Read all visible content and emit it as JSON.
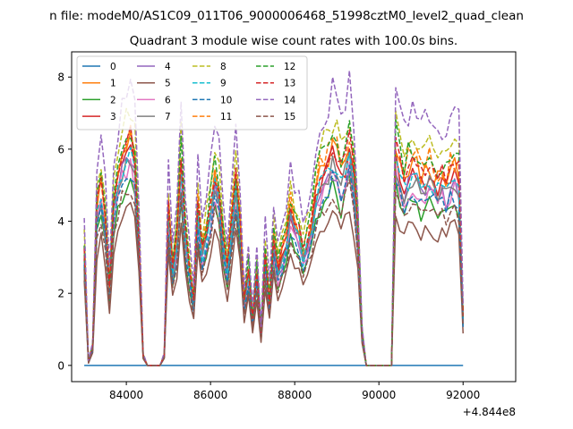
{
  "suptitle": "n file: modeM0/AS1C09_011T06_9000006468_51998cztM0_level2_quad_clean",
  "chart_data": {
    "type": "line",
    "title": "Quadrant 3 module wise count rates with 100.0s bins.",
    "xlabel": "",
    "ylabel": "",
    "x_offset_label": "+4.844e8",
    "xlim": [
      82700,
      93250
    ],
    "ylim": [
      -0.45,
      8.7
    ],
    "xticks": [
      84000,
      86000,
      88000,
      90000,
      92000
    ],
    "xtick_labels": [
      "84000",
      "86000",
      "88000",
      "90000",
      "92000"
    ],
    "yticks": [
      0,
      2,
      4,
      6,
      8
    ],
    "ytick_labels": [
      "0",
      "2",
      "4",
      "6",
      "8"
    ],
    "grid": false,
    "legend_position": "top-left",
    "legend_columns": 4,
    "x_start": 83000,
    "x_step": 100,
    "base_profile": [
      3.6,
      0.1,
      0.6,
      5.0,
      5.7,
      4.6,
      2.4,
      5.2,
      5.9,
      6.6,
      6.9,
      7.0,
      6.5,
      4.0,
      0.3,
      0.0,
      0.0,
      0.0,
      0.0,
      0.3,
      5.0,
      3.0,
      4.0,
      6.6,
      4.2,
      3.0,
      2.0,
      5.0,
      3.6,
      4.2,
      5.0,
      6.0,
      5.5,
      4.0,
      3.0,
      4.5,
      5.8,
      4.5,
      2.0,
      3.0,
      1.5,
      3.0,
      1.0,
      3.5,
      2.0,
      4.0,
      3.0,
      3.5,
      4.0,
      5.0,
      4.5,
      4.2,
      3.5,
      4.0,
      4.5,
      5.5,
      6.0,
      6.2,
      6.5,
      6.8,
      6.6,
      6.0,
      6.5,
      7.0,
      6.0,
      4.2,
      1.0,
      0.0,
      0.0,
      0.0,
      0.0,
      0.0,
      0.0,
      0.0,
      6.8,
      6.2,
      5.8,
      6.2,
      6.4,
      6.3,
      5.9,
      6.1,
      6.3,
      6.0,
      5.8,
      5.9,
      5.7,
      6.1,
      6.2,
      6.0,
      1.5
    ],
    "series": [
      {
        "name": "0",
        "color": "#1f77b4",
        "dash": "solid",
        "scale": 0.0
      },
      {
        "name": "1",
        "color": "#ff7f0e",
        "dash": "solid",
        "scale": 0.88
      },
      {
        "name": "2",
        "color": "#2ca02c",
        "dash": "solid",
        "scale": 0.72
      },
      {
        "name": "3",
        "color": "#d62728",
        "dash": "solid",
        "scale": 0.85
      },
      {
        "name": "4",
        "color": "#9467bd",
        "dash": "solid",
        "scale": 0.8
      },
      {
        "name": "5",
        "color": "#8c564b",
        "dash": "solid",
        "scale": 0.62
      },
      {
        "name": "6",
        "color": "#e377c2",
        "dash": "solid",
        "scale": 0.78
      },
      {
        "name": "7",
        "color": "#7f7f7f",
        "dash": "solid",
        "scale": 0.82
      },
      {
        "name": "8",
        "color": "#bcbd22",
        "dash": "dashed",
        "scale": 1.0
      },
      {
        "name": "9",
        "color": "#17becf",
        "dash": "dashed",
        "scale": 0.83
      },
      {
        "name": "10",
        "color": "#1f77b4",
        "dash": "dashed",
        "scale": 0.75
      },
      {
        "name": "11",
        "color": "#ff7f0e",
        "dash": "dashed",
        "scale": 0.92
      },
      {
        "name": "12",
        "color": "#2ca02c",
        "dash": "dashed",
        "scale": 0.95
      },
      {
        "name": "13",
        "color": "#d62728",
        "dash": "dashed",
        "scale": 0.9
      },
      {
        "name": "14",
        "color": "#9467bd",
        "dash": "dashed",
        "scale": 1.12
      },
      {
        "name": "15",
        "color": "#8c564b",
        "dash": "dashed",
        "scale": 0.7
      }
    ]
  }
}
